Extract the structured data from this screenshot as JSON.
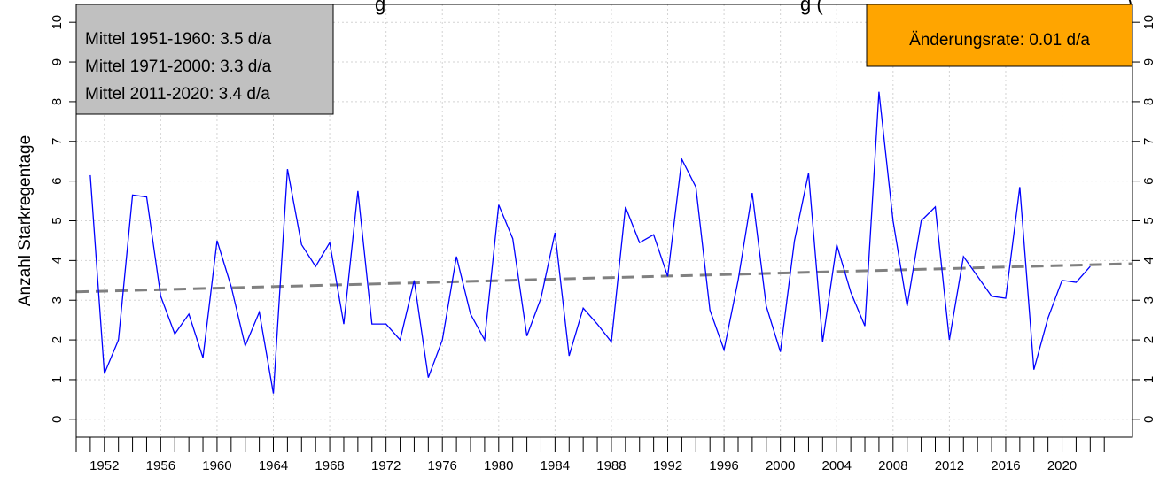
{
  "chart_data": {
    "type": "line",
    "title": "",
    "ylabel": "Anzahl Starkregentage",
    "xlabel": "",
    "ylim": [
      0,
      10
    ],
    "xlim": [
      1950,
      2025
    ],
    "grid": true,
    "yticks": [
      0,
      1,
      2,
      3,
      4,
      5,
      6,
      7,
      8,
      9,
      10
    ],
    "xticks": [
      1952,
      1956,
      1960,
      1964,
      1968,
      1972,
      1976,
      1980,
      1984,
      1988,
      1992,
      1996,
      2000,
      2004,
      2008,
      2012,
      2016,
      2020
    ],
    "x": [
      1951,
      1952,
      1953,
      1954,
      1955,
      1956,
      1957,
      1958,
      1959,
      1960,
      1961,
      1962,
      1963,
      1964,
      1965,
      1966,
      1967,
      1968,
      1969,
      1970,
      1971,
      1972,
      1973,
      1974,
      1975,
      1976,
      1977,
      1978,
      1979,
      1980,
      1981,
      1982,
      1983,
      1984,
      1985,
      1986,
      1987,
      1988,
      1989,
      1990,
      1991,
      1992,
      1993,
      1994,
      1995,
      1996,
      1997,
      1998,
      1999,
      2000,
      2001,
      2002,
      2003,
      2004,
      2005,
      2006,
      2007,
      2008,
      2009,
      2010,
      2011,
      2012,
      2013,
      2014,
      2015,
      2016,
      2017,
      2018,
      2019,
      2020,
      2021,
      2022
    ],
    "series": [
      {
        "color": "#0000ff",
        "values": [
          6.15,
          1.15,
          2.0,
          5.65,
          5.6,
          3.1,
          2.15,
          2.65,
          1.55,
          4.5,
          3.35,
          1.85,
          2.7,
          0.65,
          6.3,
          4.4,
          3.85,
          4.45,
          2.4,
          5.75,
          2.4,
          2.4,
          2.0,
          3.5,
          1.05,
          2.0,
          4.1,
          2.65,
          2.0,
          5.4,
          4.55,
          2.1,
          3.05,
          4.7,
          1.6,
          2.8,
          2.4,
          1.95,
          5.35,
          4.45,
          4.65,
          3.6,
          6.55,
          5.85,
          2.75,
          1.75,
          3.5,
          5.7,
          2.85,
          1.7,
          4.5,
          6.2,
          1.95,
          4.4,
          3.2,
          2.35,
          8.25,
          5.0,
          2.85,
          5.0,
          5.35,
          2.0,
          4.1,
          3.6,
          3.1,
          3.05,
          5.85,
          1.25,
          2.55,
          3.5,
          3.45,
          3.85
        ]
      },
      {
        "color": "#808080",
        "dashed": true,
        "x": [
          1950,
          2025
        ],
        "values": [
          3.21,
          3.92
        ]
      }
    ],
    "legend_box": {
      "position": "top-left",
      "fill": "#c0c0c0",
      "lines": [
        "Mittel 1951-1960: 3.5 d/a",
        "Mittel 1971-2000: 3.3 d/a",
        "Mittel 2011-2020: 3.4 d/a"
      ]
    },
    "rate_box": {
      "position": "top-right",
      "fill": "#ffa500",
      "text": "Änderungsrate: 0.01 d/a"
    },
    "title_fragment_left": "g",
    "title_fragment_right": "g (",
    "title_fragment_far_right": ")"
  }
}
